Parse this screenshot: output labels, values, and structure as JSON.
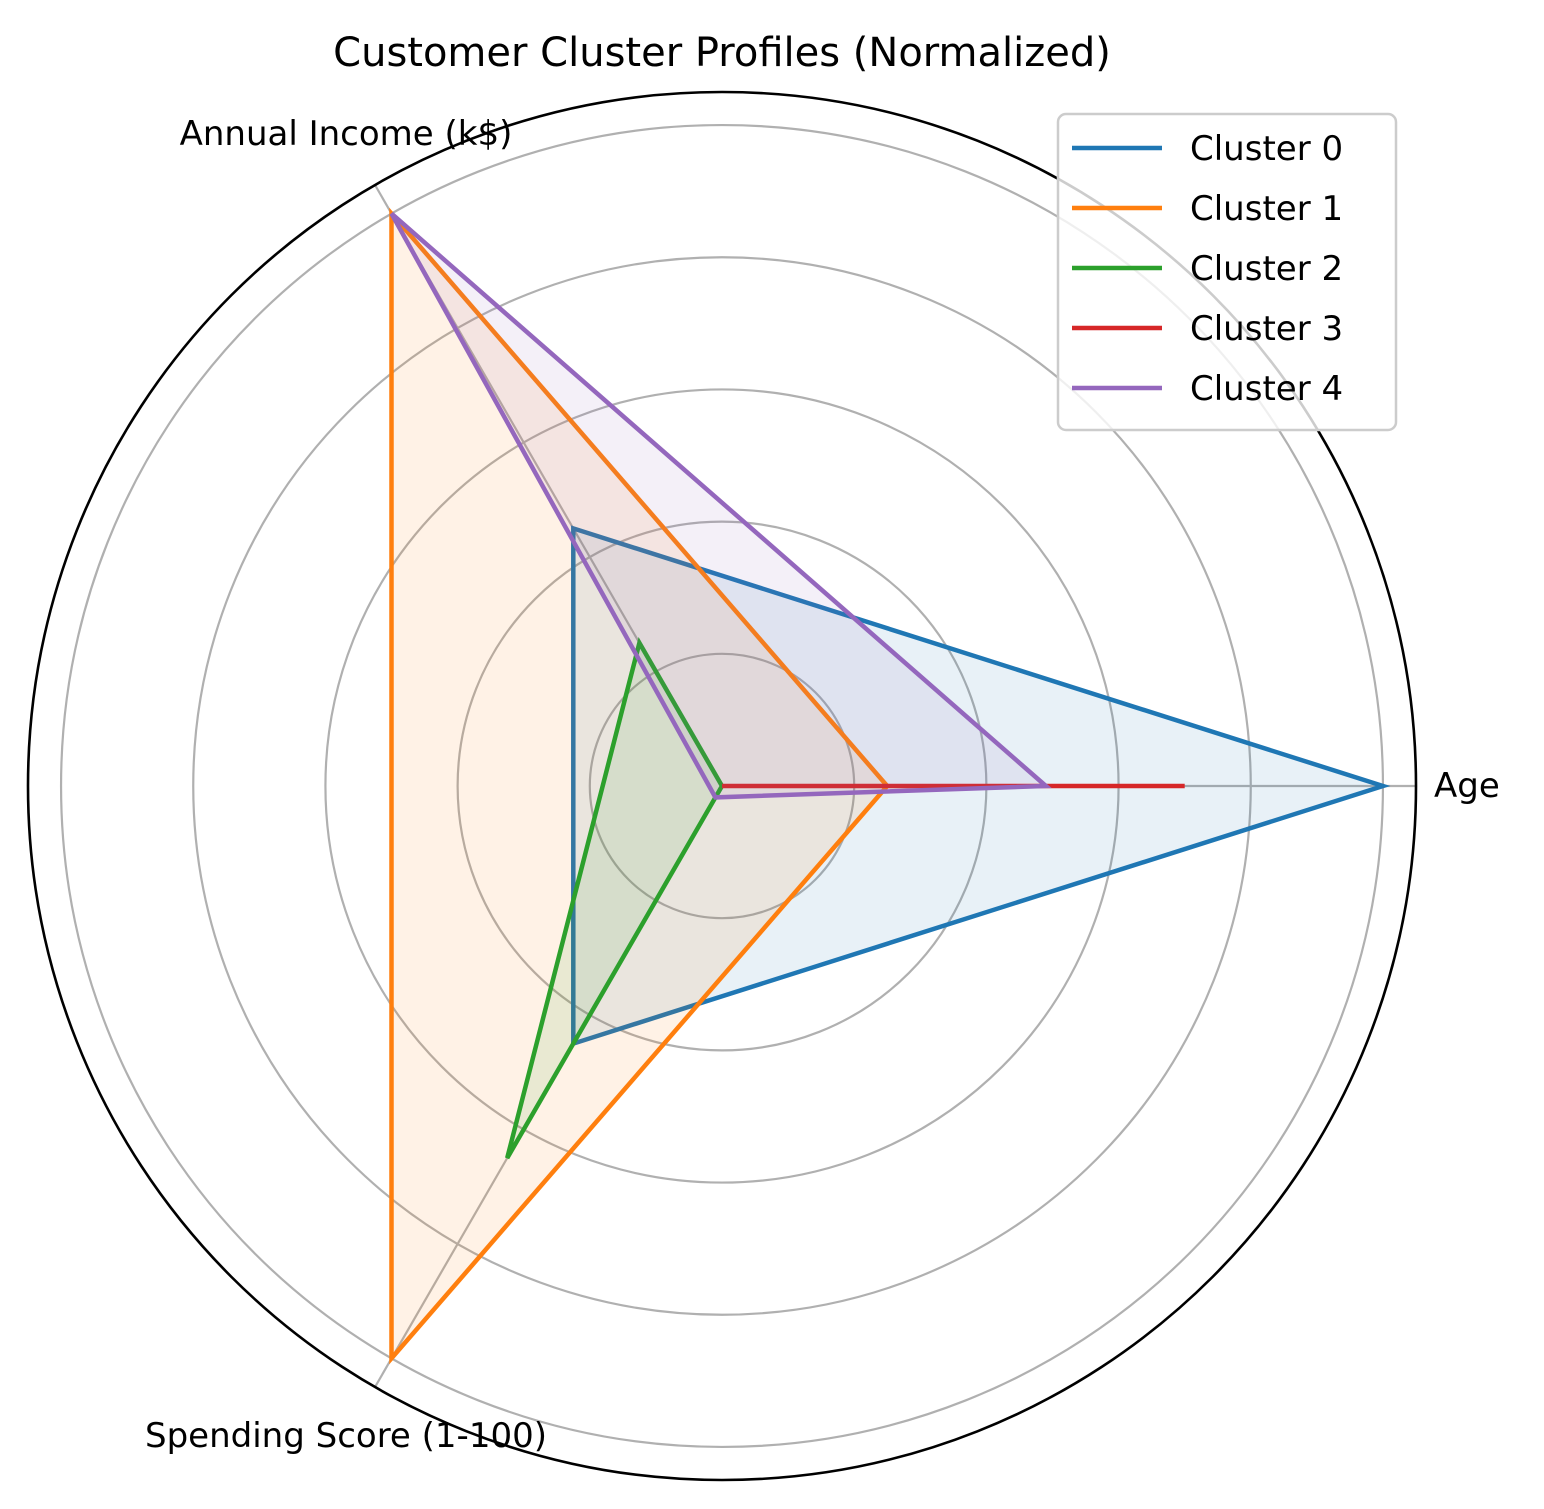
{
  "chart_data": {
    "type": "radar",
    "title": "Customer Cluster Profiles (Normalized)",
    "axes": [
      "Age",
      "Annual Income (k$)",
      "Spending Score (1-100)"
    ],
    "rlim": [
      0,
      1.05
    ],
    "grid": true,
    "legend_position": "top-right",
    "series": [
      {
        "name": "Cluster 0",
        "color": "#1f77b4",
        "values": [
          1.0,
          0.45,
          0.45
        ]
      },
      {
        "name": "Cluster 1",
        "color": "#ff7f0e",
        "values": [
          0.25,
          1.0,
          1.0
        ]
      },
      {
        "name": "Cluster 2",
        "color": "#2ca02c",
        "values": [
          0.0,
          0.25,
          0.65
        ]
      },
      {
        "name": "Cluster 3",
        "color": "#d62728",
        "values": [
          0.7,
          0.0,
          0.0
        ]
      },
      {
        "name": "Cluster 4",
        "color": "#9467bd",
        "values": [
          0.49,
          1.0,
          0.02
        ]
      }
    ]
  }
}
